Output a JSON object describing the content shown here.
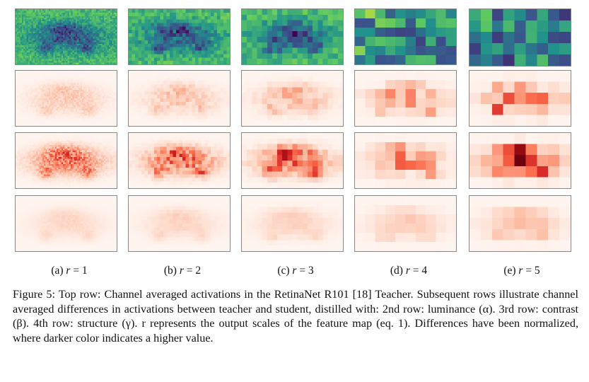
{
  "figure": {
    "columns": [
      {
        "label_prefix": "(a)",
        "label_var": "r",
        "label_eq": " = 1"
      },
      {
        "label_prefix": "(b)",
        "label_var": "r",
        "label_eq": " = 2"
      },
      {
        "label_prefix": "(c)",
        "label_var": "r",
        "label_eq": " = 3"
      },
      {
        "label_prefix": "(d)",
        "label_var": "r",
        "label_eq": " = 4"
      },
      {
        "label_prefix": "(e)",
        "label_var": "r",
        "label_eq": " = 5"
      }
    ],
    "caption": "Figure 5: Top row: Channel averaged activations in the RetinaNet R101 [18] Teacher. Subsequent rows illustrate channel averaged differences in activations between teacher and student, distilled with: 2nd row: luminance (α). 3rd row: contrast (β). 4th row: structure (γ). r represents the output scales of the feature map (eq. 1). Differences have been normalized, where darker color indicates a higher value.",
    "colors": {
      "viridis_low": "#3b1a5a",
      "viridis_mid": "#2a8a8a",
      "viridis_high": "#d8e21e",
      "reds_low": "#fff2ee",
      "reds_high": "#7a0c10"
    }
  }
}
